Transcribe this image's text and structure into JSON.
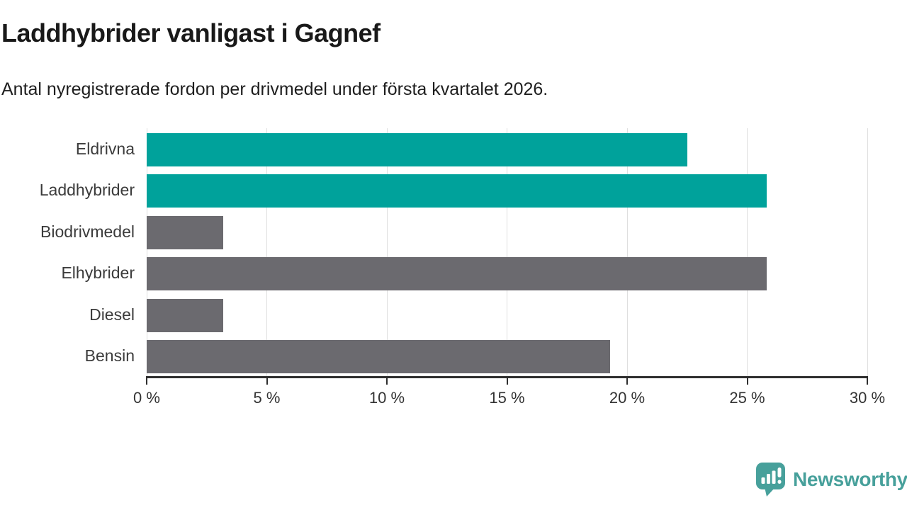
{
  "header": {
    "title": "Laddhybrider vanligast i Gagnef",
    "subtitle": "Antal nyregistrerade fordon per drivmedel under första kvartalet 2026."
  },
  "chart_data": {
    "type": "bar",
    "orientation": "horizontal",
    "title": "Laddhybrider vanligast i Gagnef",
    "subtitle": "Antal nyregistrerade fordon per drivmedel under första kvartalet 2026.",
    "categories": [
      "Eldrivna",
      "Laddhybrider",
      "Biodrivmedel",
      "Elhybrider",
      "Diesel",
      "Bensin"
    ],
    "values": [
      22.5,
      25.8,
      3.2,
      25.8,
      3.2,
      19.3
    ],
    "bar_colors": [
      "#00A29B",
      "#00A29B",
      "#6B6A6F",
      "#6B6A6F",
      "#6B6A6F",
      "#6B6A6F"
    ],
    "xlabel": "",
    "ylabel": "",
    "xlim": [
      0,
      30
    ],
    "xticks": [
      0,
      5,
      10,
      15,
      20,
      25,
      30
    ],
    "tick_labels": [
      "0 %",
      "5 %",
      "10 %",
      "15 %",
      "20 %",
      "25 %",
      "30 %"
    ],
    "grid": true,
    "legend_position": "none"
  },
  "colors": {
    "highlight": "#00A29B",
    "neutral": "#6B6A6F",
    "gridline": "#dfdfdf",
    "axis": "#2e2e2e",
    "brand": "#47A09B"
  },
  "footer": {
    "brand": "Newsworthy"
  }
}
